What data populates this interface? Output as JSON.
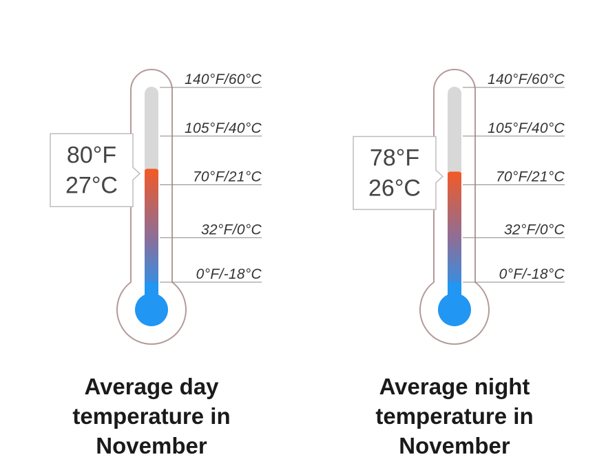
{
  "chart_data": [
    {
      "type": "thermometer",
      "value_f": 80,
      "value_c": 27,
      "value_label_f": "80°F",
      "value_label_c": "27°C",
      "scale_f": [
        0,
        140
      ],
      "ticks": [
        {
          "f": 140,
          "label": "140°F/60°C"
        },
        {
          "f": 105,
          "label": "105°F/40°C"
        },
        {
          "f": 70,
          "label": "70°F/21°C"
        },
        {
          "f": 32,
          "label": "32°F/0°C"
        },
        {
          "f": 0,
          "label": "0°F/-18°C"
        }
      ],
      "caption_lines": [
        "Average day",
        "temperature in",
        "November"
      ]
    },
    {
      "type": "thermometer",
      "value_f": 78,
      "value_c": 26,
      "value_label_f": "78°F",
      "value_label_c": "26°C",
      "scale_f": [
        0,
        140
      ],
      "ticks": [
        {
          "f": 140,
          "label": "140°F/60°C"
        },
        {
          "f": 105,
          "label": "105°F/40°C"
        },
        {
          "f": 70,
          "label": "70°F/21°C"
        },
        {
          "f": 32,
          "label": "32°F/0°C"
        },
        {
          "f": 0,
          "label": "0°F/-18°C"
        }
      ],
      "caption_lines": [
        "Average night",
        "temperature in",
        "November"
      ]
    }
  ],
  "colors": {
    "outline": "#b49a9a",
    "empty_tube": "#d8d8d8",
    "hot": "#f05a28",
    "cold": "#2196f3",
    "tick_line": "#888888"
  }
}
